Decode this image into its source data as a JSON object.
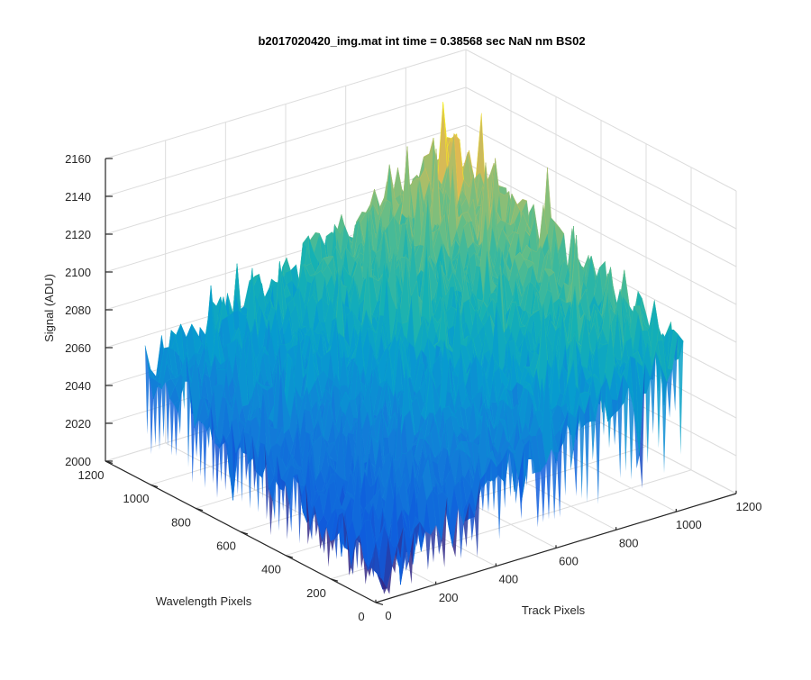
{
  "chart_data": {
    "type": "surface",
    "title": "b2017020420_img.mat int time = 0.38568 sec  NaN nm BS02",
    "xlabel": "Track Pixels",
    "ylabel": "Wavelength Pixels",
    "zlabel": "Signal (ADU)",
    "xlim": [
      0,
      1200
    ],
    "ylim": [
      0,
      1200
    ],
    "zlim": [
      2000,
      2160
    ],
    "x_ticks": [
      "0",
      "200",
      "400",
      "600",
      "800",
      "1000",
      "1200"
    ],
    "y_ticks": [
      "0",
      "200",
      "400",
      "600",
      "800",
      "1000",
      "1200"
    ],
    "z_ticks": [
      "2000",
      "2020",
      "2040",
      "2060",
      "2080",
      "2100",
      "2120",
      "2140",
      "2160"
    ],
    "grid": true,
    "colormap": "parula",
    "data_extent": {
      "x": [
        0,
        1024
      ],
      "y": [
        0,
        1024
      ]
    },
    "surface_levels": {
      "corner_x0_y0": 2020,
      "corner_xmax_y0": 2085,
      "corner_x0_ymax": 2060,
      "corner_xmax_ymax": 2125,
      "noise_amplitude": 20
    }
  }
}
